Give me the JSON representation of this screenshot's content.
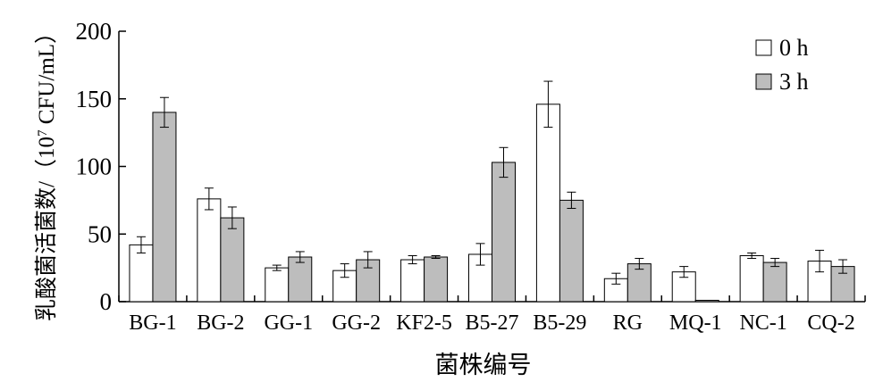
{
  "chart_data": {
    "type": "bar",
    "title": "",
    "xlabel": "菌株编号",
    "ylabel": "乳酸菌活菌数/（10⁷ CFU/mL）",
    "ylabel_parts": {
      "prefix": "乳酸菌活菌数/（10",
      "sup": "7",
      "suffix": " CFU/mL）"
    },
    "ylim": [
      0,
      200
    ],
    "yticks": [
      "0",
      "50",
      "100",
      "150",
      "200"
    ],
    "categories": [
      "BG-1",
      "BG-2",
      "GG-1",
      "GG-2",
      "KF2-5",
      "B5-27",
      "B5-29",
      "RG",
      "MQ-1",
      "NC-1",
      "CQ-2"
    ],
    "series": [
      {
        "name": "0 h",
        "color": "#ffffff",
        "values": [
          42,
          76,
          25,
          23,
          31,
          35,
          146,
          17,
          22,
          34,
          30
        ],
        "errors": [
          6,
          8,
          2,
          5,
          3,
          8,
          17,
          4,
          4,
          2,
          8
        ]
      },
      {
        "name": "3 h",
        "color": "#bdbdbd",
        "values": [
          140,
          62,
          33,
          31,
          33,
          103,
          75,
          28,
          1,
          29,
          26
        ],
        "errors": [
          11,
          8,
          4,
          6,
          1,
          11,
          6,
          4,
          0,
          3,
          5
        ]
      }
    ],
    "legend_position": "top-right",
    "grid": false
  }
}
